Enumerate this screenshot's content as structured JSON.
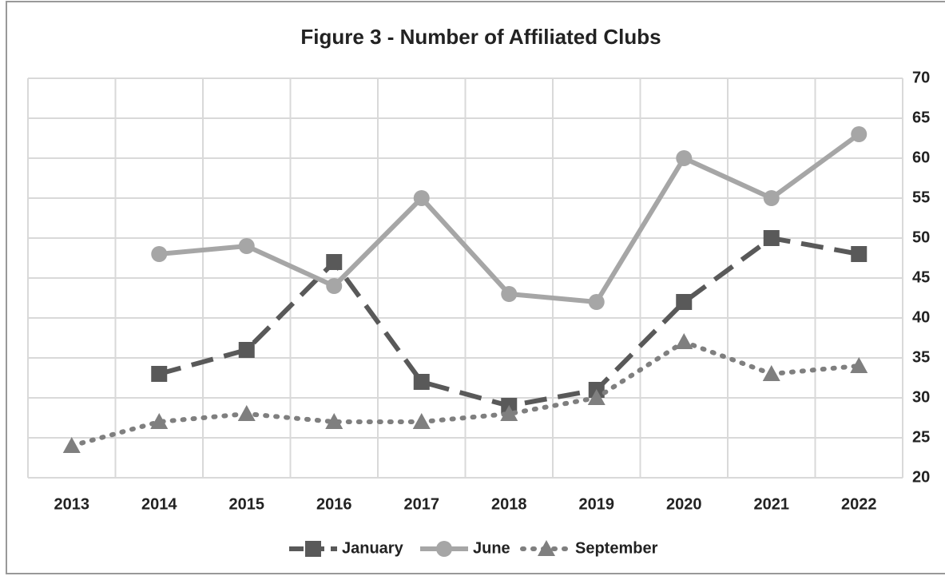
{
  "chart_data": {
    "type": "line",
    "title": "Figure 3 - Number of Affiliated Clubs",
    "categories": [
      "2013",
      "2014",
      "2015",
      "2016",
      "2017",
      "2018",
      "2019",
      "2020",
      "2021",
      "2022"
    ],
    "series": [
      {
        "name": "January",
        "color": "#595959",
        "marker": "square",
        "dash": "dashed",
        "values": [
          null,
          33,
          36,
          47,
          32,
          29,
          31,
          42,
          50,
          48
        ]
      },
      {
        "name": "June",
        "color": "#a6a6a6",
        "marker": "circle",
        "dash": "solid",
        "values": [
          null,
          48,
          49,
          44,
          55,
          43,
          42,
          60,
          55,
          63
        ]
      },
      {
        "name": "September",
        "color": "#7f7f7f",
        "marker": "triangle",
        "dash": "dotted",
        "values": [
          24,
          27,
          28,
          27,
          27,
          28,
          30,
          37,
          33,
          34
        ]
      }
    ],
    "ylim": [
      20,
      70
    ],
    "yticks": [
      20,
      25,
      30,
      35,
      40,
      45,
      50,
      55,
      60,
      65,
      70
    ],
    "y_axis_side": "right",
    "grid": true,
    "legend": "bottom"
  }
}
